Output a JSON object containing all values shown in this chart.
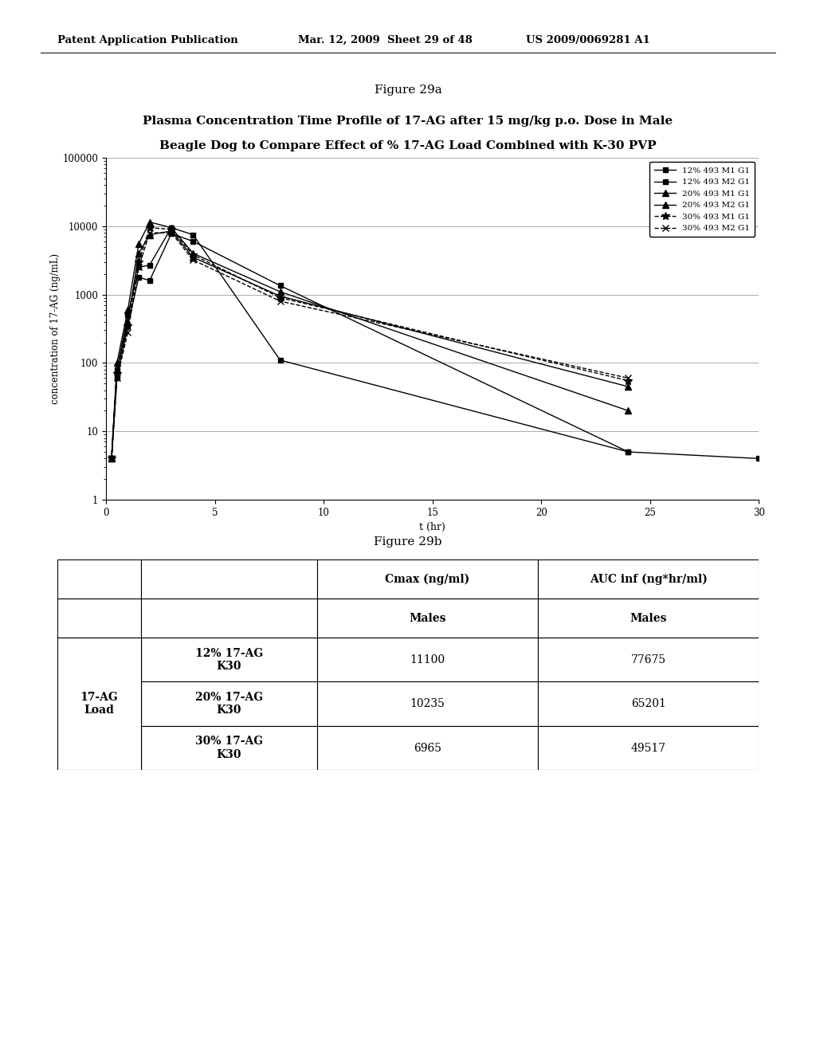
{
  "header_left": "Patent Application Publication",
  "header_mid": "Mar. 12, 2009  Sheet 29 of 48",
  "header_right": "US 2009/0069281 A1",
  "fig_a_label": "Figure 29a",
  "fig_b_label": "Figure 29b",
  "chart_title_line1": "Plasma Concentration Time Profile of 17-AG after 15 mg/kg p.o. Dose in Male",
  "chart_title_line2": "Beagle Dog to Compare Effect of % 17-AG Load Combined with K-30 PVP",
  "xlabel": "t (hr)",
  "ylabel": "concentration of 17-AG (ng/mL)",
  "xlim": [
    0,
    30
  ],
  "ylim_log": [
    1,
    100000
  ],
  "xticks": [
    0,
    5,
    10,
    15,
    20,
    25,
    30
  ],
  "series": [
    {
      "label": "12% 493 M1 G1",
      "color": "#000000",
      "linestyle": "-",
      "marker": "s",
      "markersize": 4,
      "linewidth": 1.0,
      "x": [
        0.25,
        0.5,
        1,
        1.5,
        2,
        3,
        4,
        8,
        24,
        30
      ],
      "y": [
        4,
        80,
        500,
        2500,
        2700,
        9500,
        7500,
        110,
        5,
        4
      ]
    },
    {
      "label": "12% 493 M2 G1",
      "color": "#000000",
      "linestyle": "-",
      "marker": "s",
      "markersize": 4,
      "linewidth": 1.0,
      "x": [
        0.25,
        0.5,
        1,
        1.5,
        2,
        3,
        4,
        8,
        24
      ],
      "y": [
        4,
        60,
        350,
        1800,
        1600,
        7800,
        6000,
        1350,
        5
      ]
    },
    {
      "label": "20% 493 M1 G1",
      "color": "#000000",
      "linestyle": "-",
      "marker": "^",
      "markersize": 6,
      "linewidth": 1.0,
      "x": [
        0.25,
        0.5,
        1,
        1.5,
        2,
        3,
        4,
        8,
        24
      ],
      "y": [
        4,
        100,
        600,
        5500,
        11500,
        9500,
        4000,
        1100,
        20
      ]
    },
    {
      "label": "20% 493 M2 G1",
      "color": "#000000",
      "linestyle": "-",
      "marker": "^",
      "markersize": 6,
      "linewidth": 1.0,
      "x": [
        0.25,
        0.5,
        1,
        1.5,
        2,
        3,
        4,
        8,
        24
      ],
      "y": [
        4,
        80,
        400,
        4000,
        7500,
        8500,
        3500,
        950,
        45
      ]
    },
    {
      "label": "30% 493 M1 G1",
      "color": "#000000",
      "linestyle": "--",
      "marker": "*",
      "markersize": 7,
      "linewidth": 1.0,
      "x": [
        0.25,
        0.5,
        1,
        1.5,
        2,
        3,
        4,
        8,
        24
      ],
      "y": [
        4,
        70,
        350,
        3000,
        9500,
        9000,
        3800,
        900,
        55
      ]
    },
    {
      "label": "30% 493 M2 G1",
      "color": "#000000",
      "linestyle": "--",
      "marker": "x",
      "markersize": 6,
      "linewidth": 1.0,
      "x": [
        0.25,
        0.5,
        1,
        1.5,
        2,
        3,
        4,
        8,
        24
      ],
      "y": [
        4,
        60,
        280,
        2500,
        8000,
        8000,
        3200,
        800,
        60
      ]
    }
  ],
  "table_rows": [
    [
      "17-AG\nLoad",
      "12% 17-AG\nK30",
      "11100",
      "77675"
    ],
    [
      "",
      "20% 17-AG\nK30",
      "10235",
      "65201"
    ],
    [
      "",
      "30% 17-AG\nK30",
      "6965",
      "49517"
    ]
  ],
  "bg_color": "#ffffff"
}
